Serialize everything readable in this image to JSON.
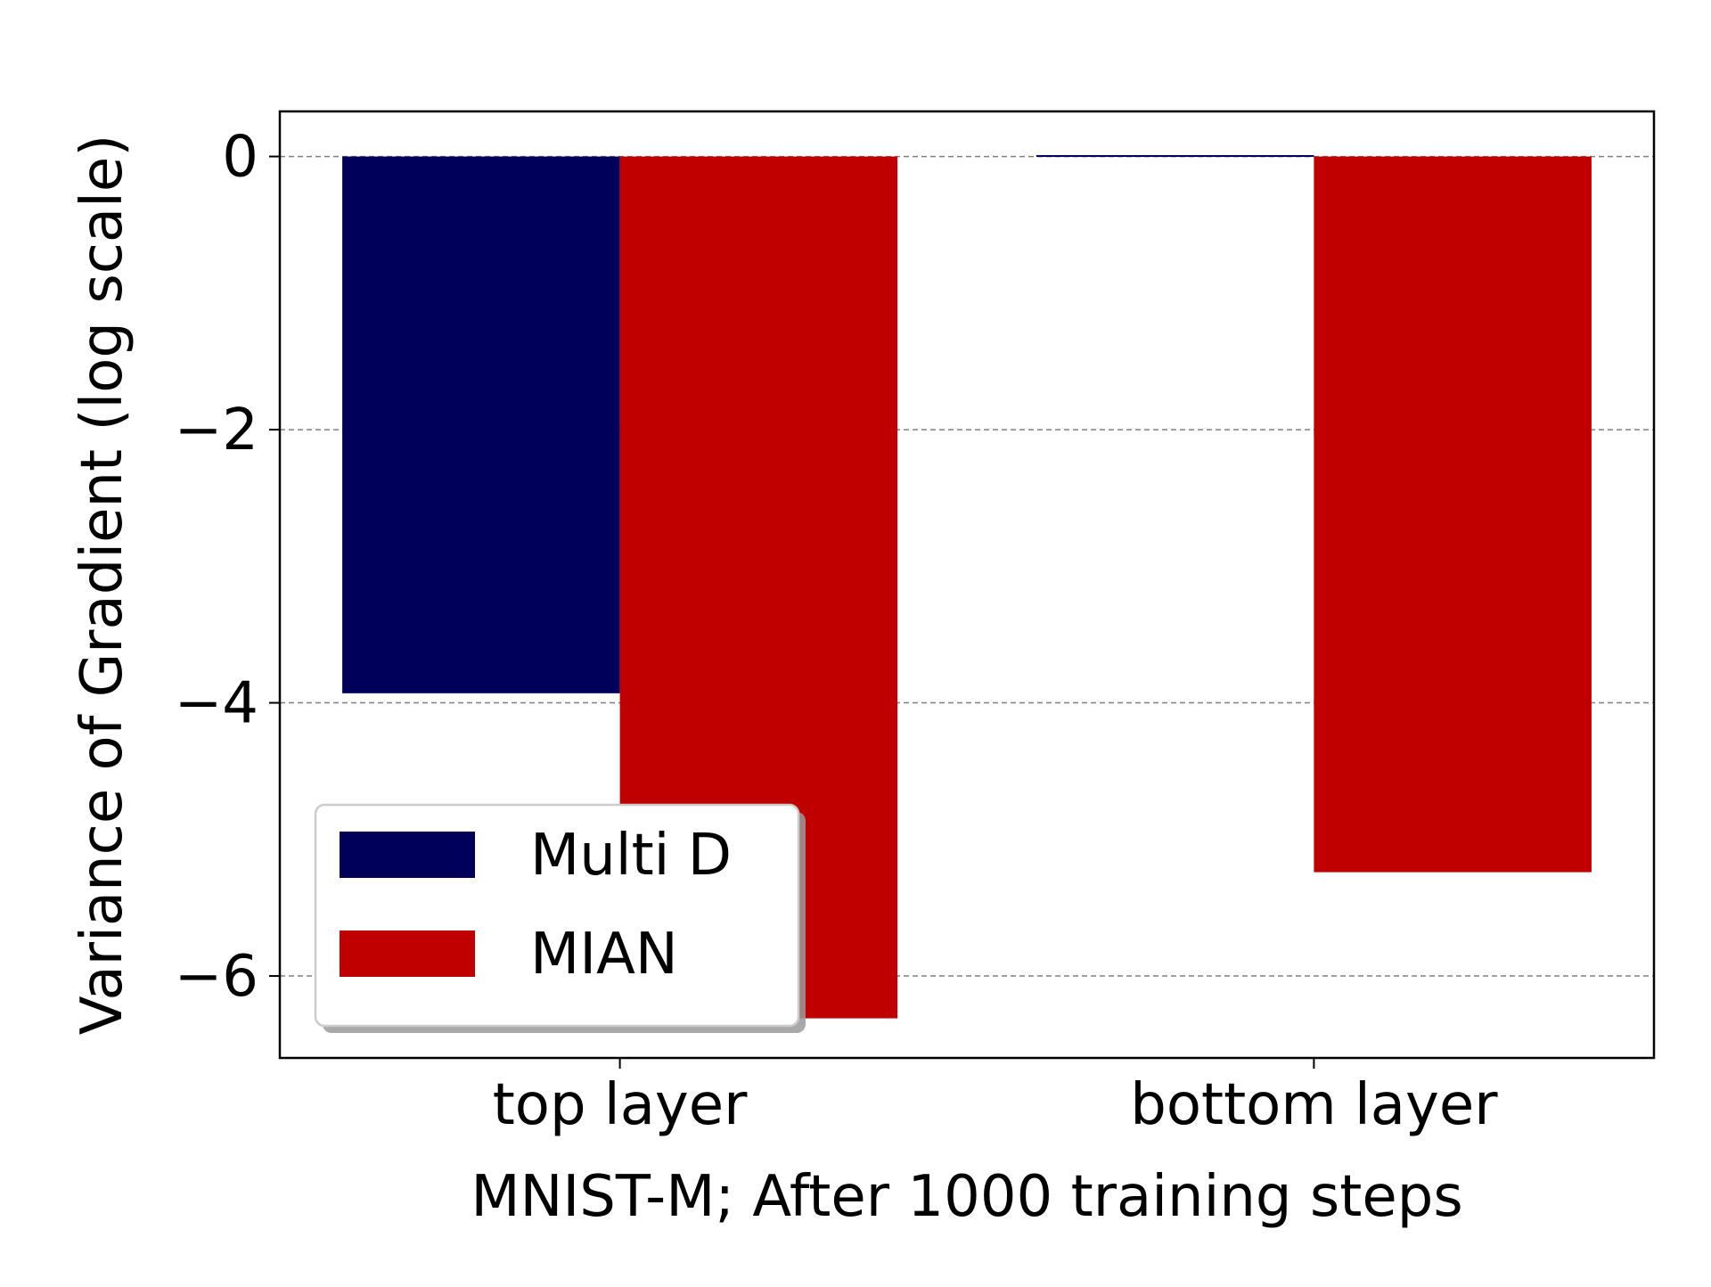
{
  "chart_data": {
    "type": "bar",
    "title": "",
    "xlabel": "MNIST-M; After 1000 training steps",
    "ylabel": "Variance of Gradient (log scale)",
    "categories": [
      "top layer",
      "bottom layer"
    ],
    "series": [
      {
        "name": "Multi D",
        "color": "#00005a",
        "values": [
          -3.93,
          0.01
        ]
      },
      {
        "name": "MIAN",
        "color": "#c00000",
        "values": [
          -6.31,
          -5.24
        ]
      }
    ],
    "ylim": [
      -6.6,
      0.33
    ],
    "yticks": [
      0,
      -2,
      -4,
      -6
    ],
    "ytick_labels": [
      "0",
      "−2",
      "−4",
      "−6"
    ],
    "grid": "y dashed",
    "legend_position": "lower-left"
  }
}
